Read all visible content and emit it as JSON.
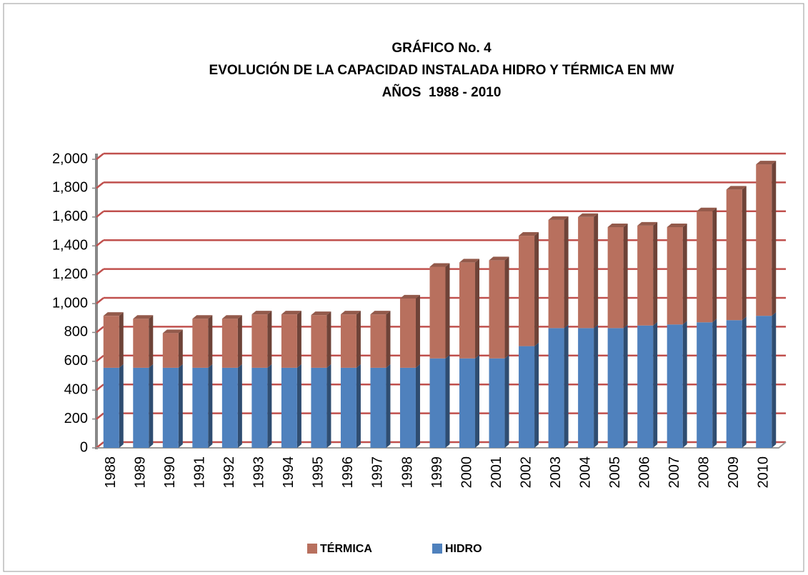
{
  "chart_data": {
    "type": "stacked-bar",
    "title": "GRÁFICO No. 4",
    "subtitle": [
      "EVOLUCIÓN DE LA CAPACIDAD INSTALADA HIDRO Y TÉRMICA EN MW",
      "AÑOS  1988 - 2010"
    ],
    "categories": [
      "1988",
      "1989",
      "1990",
      "1991",
      "1992",
      "1993",
      "1994",
      "1995",
      "1996",
      "1997",
      "1998",
      "1999",
      "2000",
      "2001",
      "2002",
      "2003",
      "2004",
      "2005",
      "2006",
      "2007",
      "2008",
      "2009",
      "2010"
    ],
    "series": [
      {
        "name": "HIDRO",
        "color": "#4f81bd",
        "values": [
          555,
          555,
          555,
          555,
          555,
          555,
          555,
          555,
          555,
          555,
          555,
          620,
          620,
          620,
          705,
          830,
          830,
          830,
          848,
          855,
          870,
          885,
          915
        ]
      },
      {
        "name": "TÉRMICA",
        "color": "#b8705e",
        "values": [
          360,
          340,
          240,
          340,
          340,
          370,
          370,
          365,
          370,
          370,
          480,
          635,
          665,
          680,
          765,
          750,
          770,
          700,
          692,
          675,
          770,
          905,
          1050
        ]
      }
    ],
    "ylim": [
      0,
      2000
    ],
    "yticks": [
      0,
      200,
      400,
      600,
      800,
      {
        "value": 1000,
        "label": "1,000"
      },
      {
        "value": 1200,
        "label": "1,200"
      },
      {
        "value": 1400,
        "label": "1,400"
      },
      {
        "value": 1600,
        "label": "1,600"
      },
      {
        "value": 1800,
        "label": "1,800"
      },
      {
        "value": 2000,
        "label": "2,000"
      }
    ],
    "grid": true,
    "grid_color": "#c0504d",
    "legend": "bottom"
  }
}
